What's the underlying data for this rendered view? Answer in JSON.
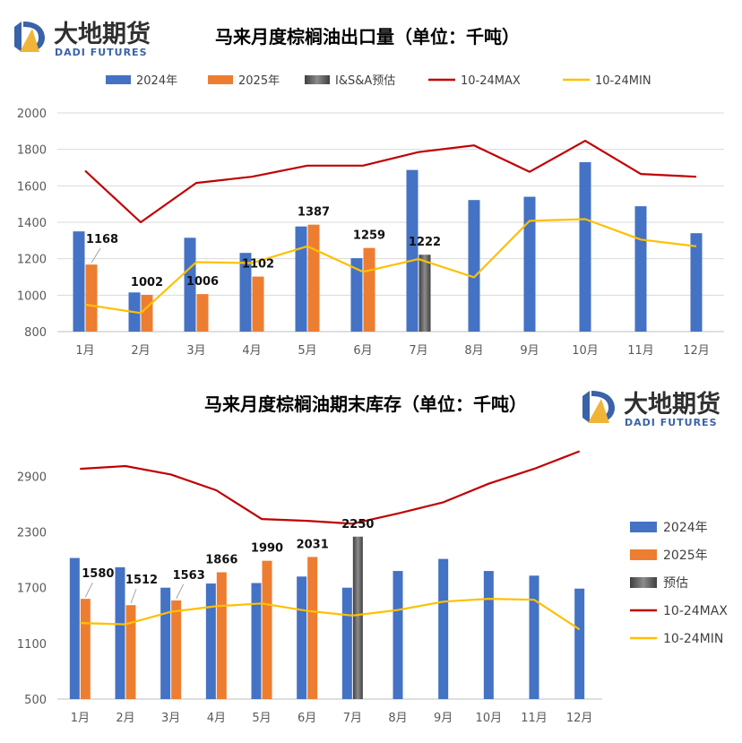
{
  "brand": {
    "name_cn": "大地期货",
    "name_en": "DADI FUTURES",
    "colors": {
      "blue": "#3a62a8",
      "gold": "#f0b437"
    }
  },
  "colors": {
    "series_2024": "#4472C4",
    "series_2025": "#ED7D31",
    "series_est": "#595959",
    "series_max": "#C00000",
    "series_min": "#FFC000",
    "grid": "#d9d9d9",
    "axis": "#bfbfbf"
  },
  "chart_data": [
    {
      "type": "bar",
      "title": "马来月度棕榈油出口量（单位：千吨）",
      "categories": [
        "1月",
        "2月",
        "3月",
        "4月",
        "5月",
        "6月",
        "7月",
        "8月",
        "9月",
        "10月",
        "11月",
        "12月"
      ],
      "ylim": [
        800,
        2000
      ],
      "yticks": [
        800,
        1000,
        1200,
        1400,
        1600,
        1800,
        2000
      ],
      "grid": true,
      "legend_position": "top",
      "series": [
        {
          "name": "2024年",
          "kind": "bar",
          "values": [
            1350,
            1015,
            1315,
            1232,
            1377,
            1203,
            1687,
            1522,
            1540,
            1730,
            1488,
            1340
          ]
        },
        {
          "name": "2025年",
          "kind": "bar",
          "values": [
            1168,
            1002,
            1006,
            1102,
            1387,
            1259,
            null,
            null,
            null,
            null,
            null,
            null
          ],
          "labels": [
            "1168",
            "1002",
            "1006",
            "1102",
            "1387",
            "1259"
          ]
        },
        {
          "name": "I&S&A预估",
          "kind": "bar",
          "values": [
            null,
            null,
            null,
            null,
            null,
            null,
            1222,
            null,
            null,
            null,
            null,
            null
          ],
          "labels": [
            "1222"
          ]
        },
        {
          "name": "10-24MAX",
          "kind": "line",
          "values": [
            1683,
            1400,
            1616,
            1650,
            1711,
            1711,
            1785,
            1822,
            1677,
            1847,
            1665,
            1650
          ]
        },
        {
          "name": "10-24MIN",
          "kind": "line",
          "values": [
            948,
            902,
            1181,
            1176,
            1268,
            1128,
            1198,
            1098,
            1408,
            1417,
            1305,
            1268
          ]
        }
      ]
    },
    {
      "type": "bar",
      "title": "马来月度棕榈油期末库存（单位：千吨）",
      "categories": [
        "1月",
        "2月",
        "3月",
        "4月",
        "5月",
        "6月",
        "7月",
        "8月",
        "9月",
        "10月",
        "11月",
        "12月"
      ],
      "ylim": [
        500,
        3300
      ],
      "yticks": [
        500,
        1100,
        1700,
        2300,
        2900
      ],
      "grid": false,
      "legend_position": "right",
      "series": [
        {
          "name": "2024年",
          "kind": "bar",
          "values": [
            2020,
            1920,
            1700,
            1745,
            1750,
            1820,
            1700,
            1880,
            2010,
            1880,
            1830,
            1690
          ]
        },
        {
          "name": "2025年",
          "kind": "bar",
          "values": [
            1580,
            1512,
            1563,
            1866,
            1990,
            2031,
            null,
            null,
            null,
            null,
            null,
            null
          ],
          "labels": [
            "1580",
            "1512",
            "1563",
            "1866",
            "1990",
            "2031"
          ]
        },
        {
          "name": "预估",
          "kind": "bar",
          "values": [
            null,
            null,
            null,
            null,
            null,
            null,
            2250,
            null,
            null,
            null,
            null,
            null
          ],
          "labels": [
            "2250"
          ]
        },
        {
          "name": "10-24MAX",
          "kind": "line",
          "values": [
            2980,
            3010,
            2920,
            2750,
            2440,
            2420,
            2390,
            2500,
            2620,
            2820,
            2980,
            3170
          ]
        },
        {
          "name": "10-24MIN",
          "kind": "line",
          "values": [
            1320,
            1305,
            1440,
            1500,
            1530,
            1450,
            1400,
            1460,
            1550,
            1580,
            1570,
            1250
          ]
        }
      ]
    }
  ]
}
